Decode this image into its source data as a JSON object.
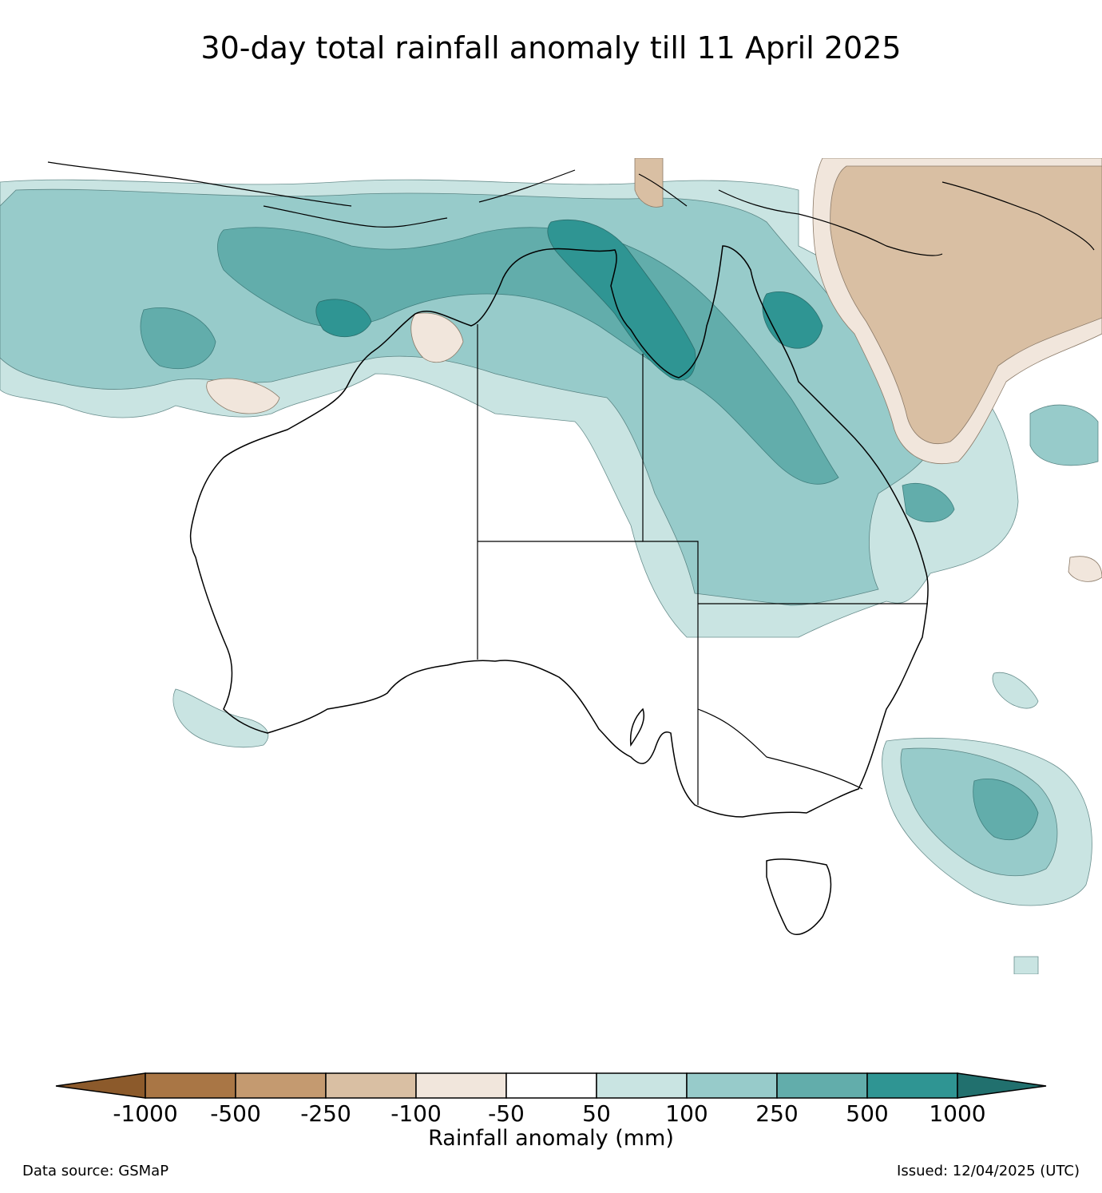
{
  "title": "30-day total rainfall anomaly till 11 April 2025",
  "colorbar": {
    "label": "Rainfall anomaly (mm)",
    "ticks": [
      "-1000",
      "-500",
      "-250",
      "-100",
      "-50",
      "50",
      "100",
      "250",
      "500",
      "1000"
    ],
    "colors": [
      "#8c5a2b",
      "#a97645",
      "#c49a70",
      "#d9bfa3",
      "#f1e6dc",
      "#ffffff",
      "#c9e4e2",
      "#97cbca",
      "#62adab",
      "#2f9593",
      "#21706e"
    ]
  },
  "footer": {
    "source": "Data source: GSMaP",
    "issued": "Issued: 12/04/2025 (UTC)"
  },
  "legend_classes": [
    {
      "range": "< -1000",
      "color": "#8c5a2b"
    },
    {
      "range": "-1000 to -500",
      "color": "#a97645"
    },
    {
      "range": "-500 to -250",
      "color": "#c49a70"
    },
    {
      "range": "-250 to -100",
      "color": "#d9bfa3"
    },
    {
      "range": "-100 to -50",
      "color": "#f1e6dc"
    },
    {
      "range": "-50 to 50",
      "color": "#ffffff"
    },
    {
      "range": "50 to 100",
      "color": "#c9e4e2"
    },
    {
      "range": "100 to 250",
      "color": "#97cbca"
    },
    {
      "range": "250 to 500",
      "color": "#62adab"
    },
    {
      "range": "500 to 1000",
      "color": "#2f9593"
    },
    {
      "range": "> 1000",
      "color": "#21706e"
    }
  ]
}
